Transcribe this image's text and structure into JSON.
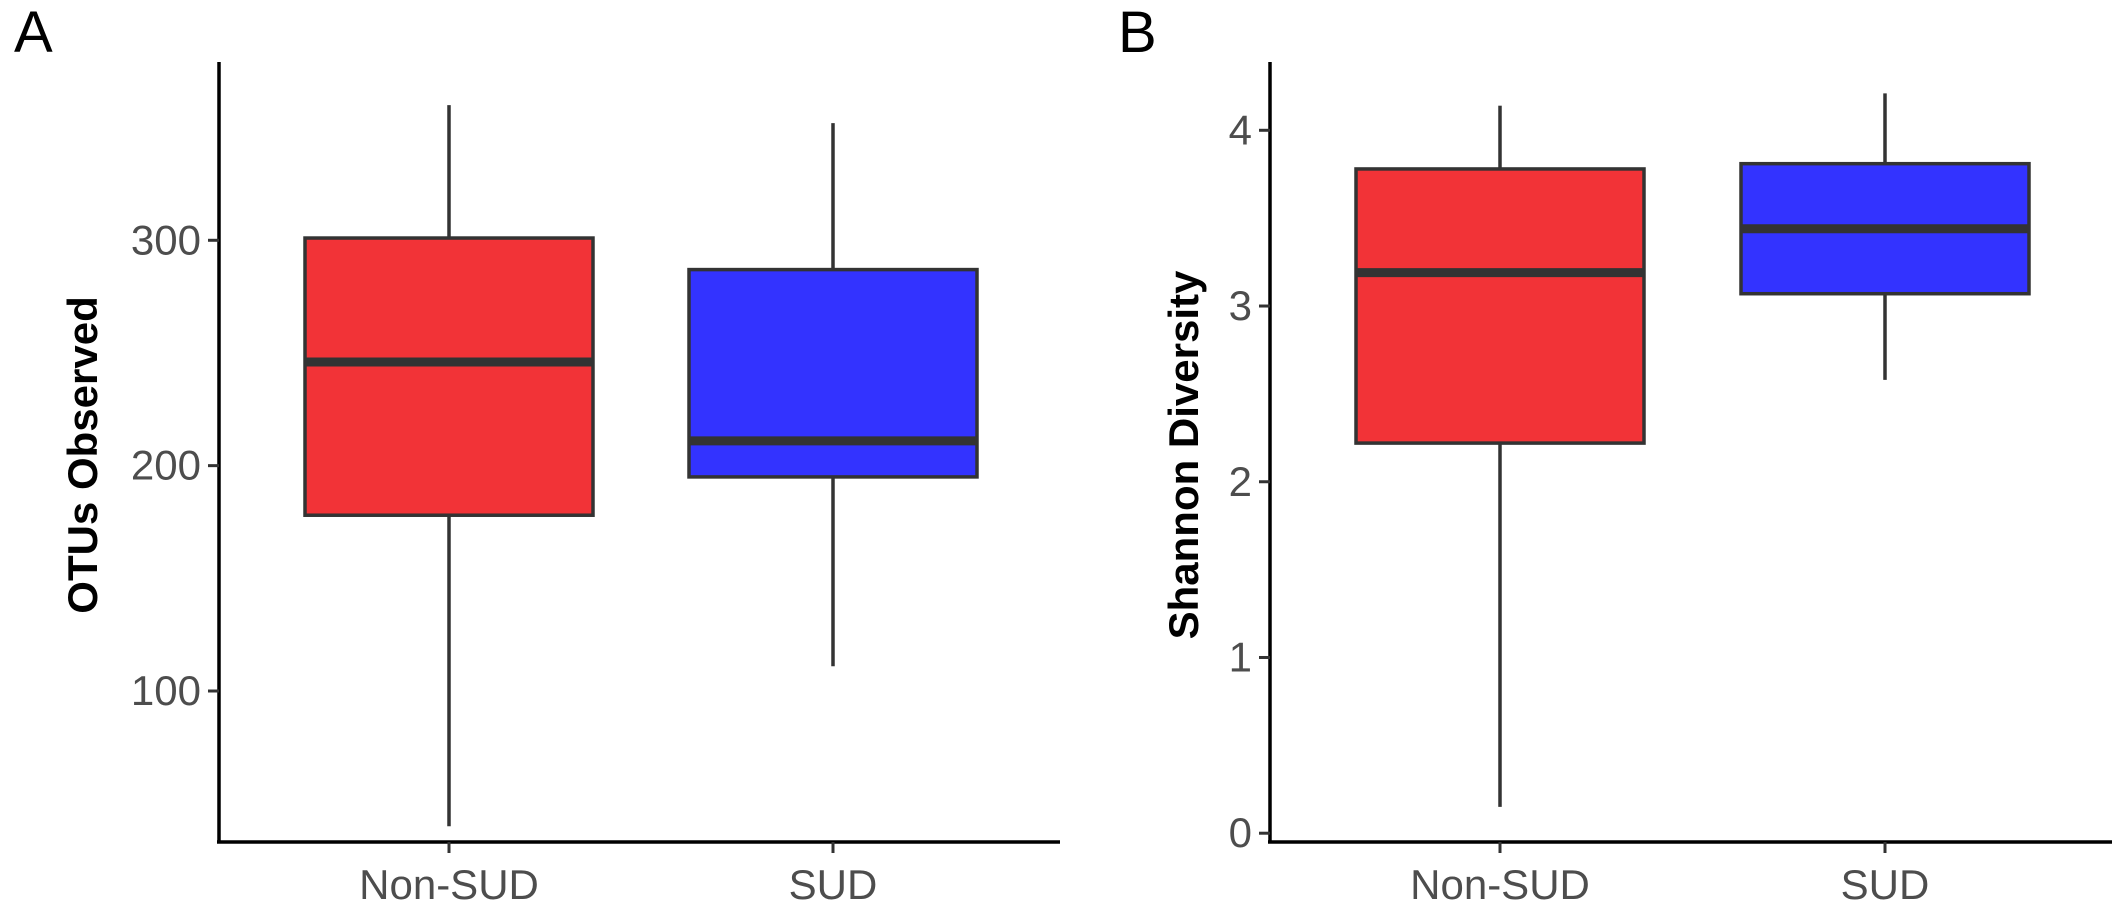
{
  "chart_data": [
    {
      "type": "box",
      "panel_label": "A",
      "title": "",
      "xlabel": "",
      "ylabel": "OTUs Observed",
      "categories": [
        "Non-SUD",
        "SUD"
      ],
      "ylim": [
        33,
        380
      ],
      "yticks": [
        100,
        200,
        300
      ],
      "grid": false,
      "legend": "none",
      "boxes": [
        {
          "category": "Non-SUD",
          "whisker_low": 40,
          "q1": 178,
          "median": 246,
          "q3": 301,
          "whisker_high": 360,
          "color": "#f23337"
        },
        {
          "category": "SUD",
          "whisker_low": 111,
          "q1": 195,
          "median": 211,
          "q3": 287,
          "whisker_high": 352,
          "color": "#3333ff"
        }
      ]
    },
    {
      "type": "box",
      "panel_label": "B",
      "title": "",
      "xlabel": "",
      "ylabel": "Shannon Diversity",
      "categories": [
        "Non-SUD",
        "SUD"
      ],
      "ylim": [
        -0.05,
        4.4
      ],
      "yticks": [
        0,
        1,
        2,
        3,
        4
      ],
      "grid": false,
      "legend": "none",
      "boxes": [
        {
          "category": "Non-SUD",
          "whisker_low": 0.15,
          "q1": 2.22,
          "median": 3.19,
          "q3": 3.78,
          "whisker_high": 4.14,
          "color": "#f23337"
        },
        {
          "category": "SUD",
          "whisker_low": 2.58,
          "q1": 3.07,
          "median": 3.44,
          "q3": 3.81,
          "whisker_high": 4.21,
          "color": "#3333ff"
        }
      ]
    }
  ]
}
